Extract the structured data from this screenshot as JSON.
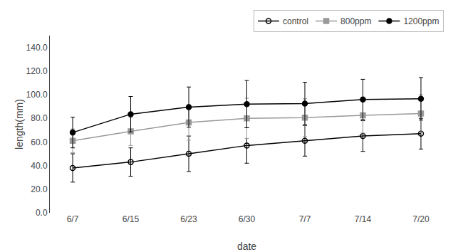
{
  "chart_data": {
    "type": "line",
    "xlabel": "date",
    "ylabel": "length(mm)",
    "categories": [
      "6/7",
      "6/15",
      "6/23",
      "6/30",
      "7/7",
      "7/14",
      "7/20"
    ],
    "series": [
      {
        "name": "control",
        "color": "#000000",
        "marker": "circle-open",
        "values": [
          38.0,
          43.0,
          50.0,
          57.0,
          61.0,
          65.0,
          67.0
        ],
        "errors": [
          12.0,
          12.0,
          15.0,
          15.0,
          13.0,
          13.0,
          13.0
        ]
      },
      {
        "name": "800ppm",
        "color": "#999999",
        "marker": "square",
        "values": [
          61.0,
          69.0,
          76.5,
          80.0,
          80.5,
          82.5,
          84.0
        ],
        "errors": [
          10.0,
          12.0,
          15.0,
          17.0,
          16.0,
          15.0,
          16.0
        ]
      },
      {
        "name": "1200ppm",
        "color": "#000000",
        "marker": "circle",
        "values": [
          68.0,
          83.5,
          89.5,
          92.0,
          92.5,
          96.0,
          96.5
        ],
        "errors": [
          13.0,
          15.0,
          17.0,
          20.0,
          18.0,
          17.0,
          18.0
        ]
      }
    ],
    "ylim": [
      0.0,
      150.0
    ],
    "yticks": [
      {
        "value": 0,
        "label": "0.0"
      },
      {
        "value": 20,
        "label": "20.0"
      },
      {
        "value": 40,
        "label": "40.0"
      },
      {
        "value": 60,
        "label": "60.0"
      },
      {
        "value": 80,
        "label": "80.0"
      },
      {
        "value": 100,
        "label": "100.0"
      },
      {
        "value": 120,
        "label": "120.0"
      },
      {
        "value": 140,
        "label": "140.0"
      }
    ],
    "grid": false,
    "legend": "upper right"
  }
}
